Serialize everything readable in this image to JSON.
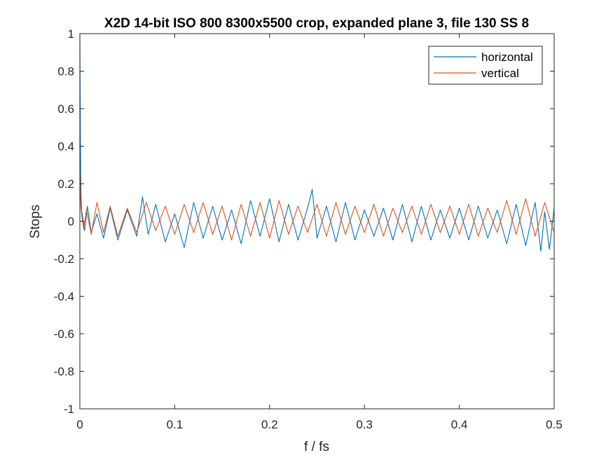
{
  "chart_data": {
    "type": "line",
    "title": "X2D 14-bit ISO 800 8300x5500 crop, expanded plane 3, file 130 SS 8",
    "xlabel": "f / fs",
    "ylabel": "Stops",
    "xlim": [
      0,
      0.5
    ],
    "ylim": [
      -1,
      1
    ],
    "x_ticks": [
      0,
      0.1,
      0.2,
      0.3,
      0.4,
      0.5
    ],
    "x_tick_labels": [
      "0",
      "0.1",
      "0.2",
      "0.3",
      "0.4",
      "0.5"
    ],
    "y_ticks": [
      -1,
      -0.8,
      -0.6,
      -0.4,
      -0.2,
      0,
      0.2,
      0.4,
      0.6,
      0.8,
      1
    ],
    "y_tick_labels": [
      "-1",
      "-0.8",
      "-0.6",
      "-0.4",
      "-0.2",
      "0",
      "0.2",
      "0.4",
      "0.6",
      "0.8",
      "1"
    ],
    "grid": false,
    "legend": {
      "position": "top-right",
      "entries": [
        "horizontal",
        "vertical"
      ]
    },
    "series": [
      {
        "name": "horizontal",
        "color": "#0072BD",
        "x": [
          0,
          0.0005,
          0.001,
          0.0015,
          0.002,
          0.003,
          0.005,
          0.008,
          0.012,
          0.018,
          0.025,
          0.032,
          0.04,
          0.05,
          0.06,
          0.066,
          0.072,
          0.08,
          0.09,
          0.1,
          0.11,
          0.12,
          0.13,
          0.14,
          0.15,
          0.16,
          0.17,
          0.18,
          0.19,
          0.2,
          0.21,
          0.22,
          0.23,
          0.24,
          0.245,
          0.25,
          0.26,
          0.27,
          0.28,
          0.29,
          0.3,
          0.31,
          0.32,
          0.33,
          0.34,
          0.35,
          0.36,
          0.37,
          0.38,
          0.39,
          0.4,
          0.41,
          0.42,
          0.43,
          0.44,
          0.45,
          0.46,
          0.47,
          0.48,
          0.486,
          0.49,
          0.495,
          0.5
        ],
        "values": [
          1.0,
          0.45,
          0.2,
          0.1,
          0.05,
          0.02,
          -0.05,
          0.08,
          -0.06,
          0.04,
          -0.09,
          0.07,
          -0.1,
          0.06,
          -0.08,
          0.13,
          -0.07,
          0.09,
          -0.11,
          0.04,
          -0.14,
          0.1,
          -0.09,
          0.08,
          -0.1,
          0.06,
          -0.12,
          0.11,
          -0.08,
          0.12,
          -0.11,
          0.09,
          -0.1,
          0.07,
          0.17,
          -0.09,
          0.08,
          -0.11,
          0.1,
          -0.1,
          0.06,
          -0.08,
          0.07,
          -0.1,
          0.09,
          -0.11,
          0.08,
          -0.1,
          0.06,
          -0.09,
          0.07,
          -0.1,
          0.08,
          -0.09,
          0.06,
          -0.12,
          0.09,
          -0.13,
          0.1,
          -0.16,
          0.05,
          -0.15,
          0.07
        ]
      },
      {
        "name": "vertical",
        "color": "#D95319",
        "x": [
          0,
          0.0005,
          0.001,
          0.002,
          0.004,
          0.007,
          0.012,
          0.018,
          0.025,
          0.032,
          0.04,
          0.05,
          0.06,
          0.07,
          0.08,
          0.09,
          0.1,
          0.11,
          0.12,
          0.13,
          0.14,
          0.15,
          0.16,
          0.17,
          0.18,
          0.19,
          0.2,
          0.21,
          0.22,
          0.23,
          0.24,
          0.25,
          0.26,
          0.27,
          0.28,
          0.29,
          0.3,
          0.31,
          0.32,
          0.33,
          0.34,
          0.35,
          0.36,
          0.37,
          0.38,
          0.39,
          0.4,
          0.41,
          0.42,
          0.43,
          0.44,
          0.45,
          0.46,
          0.47,
          0.48,
          0.49,
          0.5
        ],
        "values": [
          0.28,
          0.15,
          0.08,
          0.03,
          -0.04,
          0.06,
          -0.07,
          0.1,
          -0.06,
          0.08,
          -0.08,
          0.07,
          -0.06,
          0.1,
          -0.05,
          0.08,
          -0.07,
          0.09,
          -0.06,
          0.1,
          -0.07,
          0.08,
          -0.1,
          0.09,
          -0.08,
          0.1,
          -0.09,
          0.11,
          -0.07,
          0.08,
          -0.06,
          0.09,
          -0.08,
          0.1,
          -0.07,
          0.08,
          -0.06,
          0.09,
          -0.08,
          0.07,
          -0.06,
          0.08,
          -0.07,
          0.09,
          -0.06,
          0.08,
          -0.07,
          0.09,
          -0.08,
          0.07,
          -0.06,
          0.11,
          -0.07,
          0.12,
          -0.08,
          0.1,
          -0.06
        ]
      }
    ]
  }
}
